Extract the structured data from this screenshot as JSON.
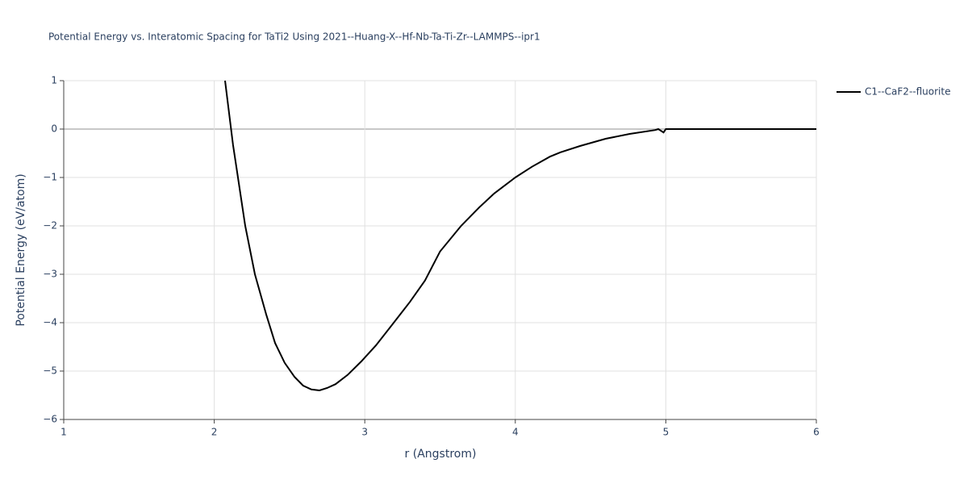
{
  "chart_data": {
    "type": "line",
    "title": "Potential Energy vs. Interatomic Spacing for TaTi2 Using 2021--Huang-X--Hf-Nb-Ta-Ti-Zr--LAMMPS--ipr1",
    "x_label": "r (Angstrom)",
    "y_label": "Potential Energy (eV/atom)",
    "xlim": [
      1,
      6
    ],
    "xticks": [
      1,
      2,
      3,
      4,
      5,
      6
    ],
    "ylim": [
      -6,
      1
    ],
    "yticks": [
      {
        "value": -6,
        "label": "−6"
      },
      {
        "value": -5,
        "label": "−5"
      },
      {
        "value": -4,
        "label": "−4"
      },
      {
        "value": -3,
        "label": "−3"
      },
      {
        "value": -2,
        "label": "−2"
      },
      {
        "value": -1,
        "label": "−1"
      },
      0,
      1
    ],
    "grid": true,
    "legend": "right",
    "series": [
      {
        "name": "C1--CaF2--fluorite",
        "color": "#000000",
        "x": [
          2.072,
          2.125,
          2.147,
          2.206,
          2.27,
          2.345,
          2.404,
          2.468,
          2.533,
          2.59,
          2.645,
          2.699,
          2.75,
          2.806,
          2.886,
          2.977,
          3.074,
          3.18,
          3.3,
          3.4,
          3.5,
          3.64,
          3.76,
          3.86,
          4.0,
          4.11,
          4.23,
          4.3,
          4.43,
          4.6,
          4.76,
          4.93,
          4.95,
          4.985,
          5.0,
          6.0
        ],
        "values": [
          1,
          -0.33,
          -0.78,
          -2,
          -3,
          -3.83,
          -4.42,
          -4.83,
          -5.12,
          -5.3,
          -5.38,
          -5.4,
          -5.35,
          -5.27,
          -5.08,
          -4.8,
          -4.47,
          -4.05,
          -3.57,
          -3.13,
          -2.53,
          -2,
          -1.62,
          -1.33,
          -1.0,
          -0.78,
          -0.57,
          -0.48,
          -0.35,
          -0.2,
          -0.1,
          -0.02,
          0,
          -0.07,
          0,
          0
        ]
      }
    ]
  }
}
